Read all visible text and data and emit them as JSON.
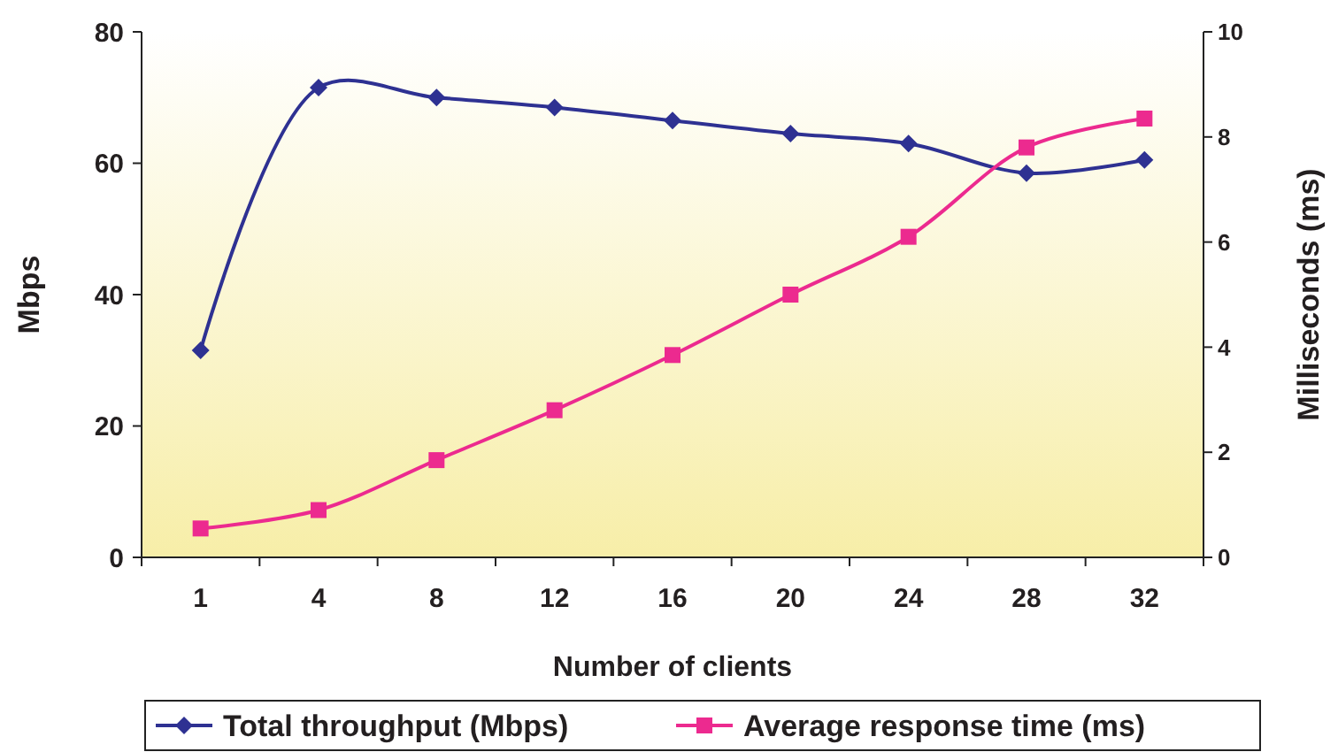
{
  "chart_data": {
    "type": "line",
    "xlabel": "Number of clients",
    "ylabel": "Mbps",
    "y2label": "Milliseconds (ms)",
    "categories": [
      "1",
      "4",
      "8",
      "12",
      "16",
      "20",
      "24",
      "28",
      "32"
    ],
    "series": [
      {
        "name": "Total throughput (Mbps)",
        "color": "#2e3192",
        "marker": "diamond",
        "values": [
          31.5,
          71.5,
          70,
          68.5,
          66.5,
          64.5,
          63,
          58.5,
          60.5
        ]
      },
      {
        "name": "Average response time (ms)",
        "color": "#ec2a8f",
        "marker": "square",
        "axis": "y2",
        "values": [
          0.55,
          0.9,
          1.85,
          2.8,
          3.85,
          5.0,
          6.1,
          7.8,
          8.35
        ]
      }
    ],
    "ylim": [
      0,
      80
    ],
    "yticks": [
      0,
      20,
      40,
      60,
      80
    ],
    "y2lim": [
      0,
      10
    ],
    "y2ticks": [
      0,
      2,
      4,
      6,
      8,
      10
    ],
    "grid": false,
    "legend": "bottom",
    "line_style": "solid"
  }
}
